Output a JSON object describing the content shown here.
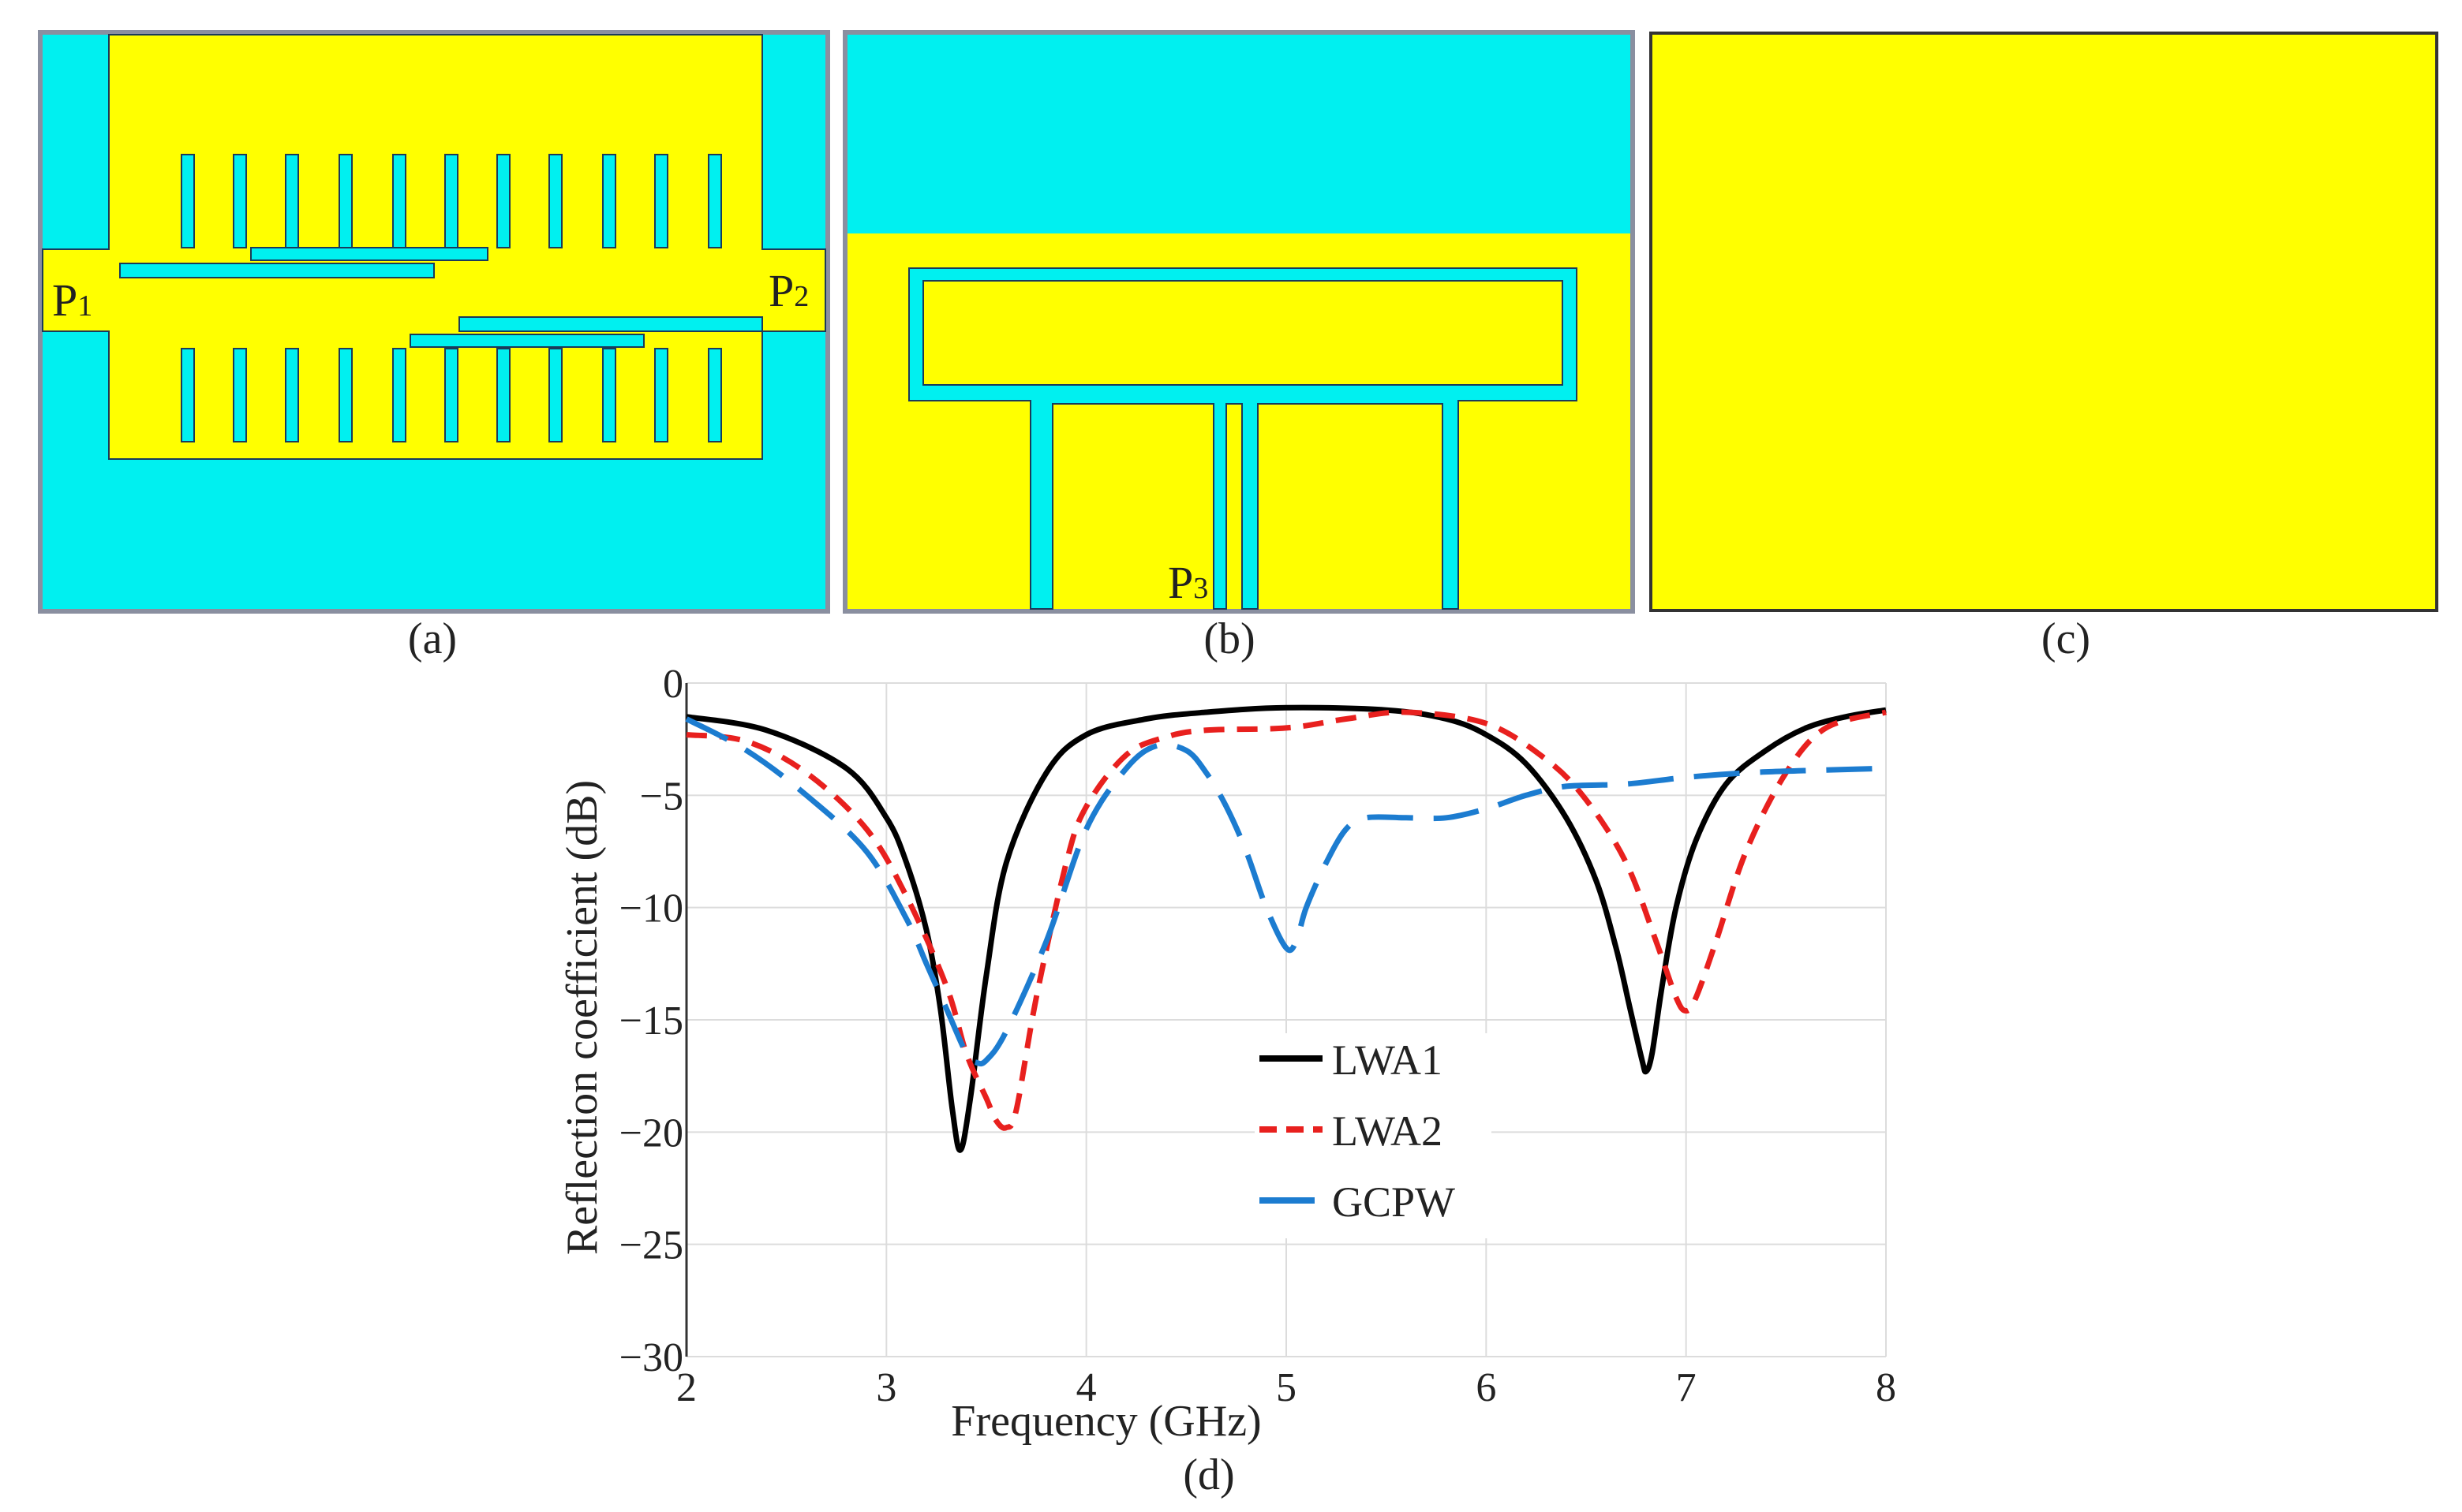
{
  "colors": {
    "substrate": "#00F0F0",
    "copper": "#FFFF00",
    "outline": "#1a3a5a",
    "frame": "#8a8fa0",
    "lwa1": "#000000",
    "lwa2": "#E8201E",
    "gcpw": "#1C7CD0",
    "grid": "#dcdcdc"
  },
  "panels": {
    "a": {
      "caption": "(a)",
      "port_left": "P",
      "port_left_sub": "1",
      "port_right": "P",
      "port_right_sub": "2"
    },
    "b": {
      "caption": "(b)",
      "port": "P",
      "port_sub": "3"
    },
    "c": {
      "caption": "(c)"
    },
    "d": {
      "caption": "(d)"
    }
  },
  "chart_data": {
    "type": "line",
    "xlabel": "Frequency (GHz)",
    "ylabel": "Reflection coefficient (dB)",
    "xlim": [
      2,
      8
    ],
    "ylim": [
      -30,
      0
    ],
    "xticks": [
      2,
      3,
      4,
      5,
      6,
      7,
      8
    ],
    "yticks": [
      0,
      -5,
      -10,
      -15,
      -20,
      -25,
      -30
    ],
    "xtick_labels": [
      "2",
      "3",
      "4",
      "5",
      "6",
      "7",
      "8"
    ],
    "ytick_labels": [
      "0",
      "−5",
      "−10",
      "−15",
      "−20",
      "−25",
      "−30"
    ],
    "grid": true,
    "legend_position": "center",
    "series": [
      {
        "name": "LWA1",
        "style": "solid",
        "x": [
          2.0,
          2.4,
          2.8,
          3.0,
          3.1,
          3.2,
          3.27,
          3.33,
          3.37,
          3.42,
          3.5,
          3.6,
          3.8,
          4.0,
          4.3,
          4.6,
          5.0,
          5.5,
          5.8,
          6.0,
          6.2,
          6.4,
          6.55,
          6.65,
          6.72,
          6.78,
          6.8,
          6.83,
          6.88,
          6.95,
          7.05,
          7.2,
          7.4,
          7.6,
          7.8,
          8.0
        ],
        "y": [
          -1.5,
          -2.1,
          -3.8,
          -6.0,
          -8.0,
          -11.0,
          -14.5,
          -19.0,
          -20.8,
          -18.5,
          -13.0,
          -8.0,
          -4.0,
          -2.3,
          -1.6,
          -1.3,
          -1.1,
          -1.2,
          -1.6,
          -2.3,
          -3.6,
          -6.0,
          -8.8,
          -11.8,
          -14.5,
          -16.8,
          -17.3,
          -16.5,
          -13.5,
          -10.0,
          -7.0,
          -4.5,
          -3.0,
          -2.0,
          -1.5,
          -1.2
        ]
      },
      {
        "name": "LWA2",
        "style": "dashed",
        "x": [
          2.0,
          2.3,
          2.6,
          2.9,
          3.1,
          3.3,
          3.4,
          3.5,
          3.55,
          3.6,
          3.65,
          3.75,
          3.9,
          4.0,
          4.2,
          4.4,
          4.6,
          5.0,
          5.3,
          5.6,
          6.0,
          6.3,
          6.5,
          6.7,
          6.85,
          6.95,
          7.0,
          7.05,
          7.15,
          7.3,
          7.5,
          7.7,
          8.0
        ],
        "y": [
          -2.3,
          -2.6,
          -4.0,
          -6.5,
          -9.5,
          -13.5,
          -16.5,
          -18.5,
          -19.5,
          -19.8,
          -19.0,
          -14.0,
          -8.0,
          -5.5,
          -3.2,
          -2.4,
          -2.1,
          -2.0,
          -1.6,
          -1.3,
          -1.8,
          -3.4,
          -5.2,
          -8.0,
          -11.5,
          -14.0,
          -14.6,
          -14.0,
          -11.5,
          -7.5,
          -4.0,
          -2.0,
          -1.3
        ]
      },
      {
        "name": "GCPW",
        "style": "longdash",
        "x": [
          2.0,
          2.3,
          2.6,
          2.9,
          3.1,
          3.2,
          3.3,
          3.4,
          3.45,
          3.5,
          3.6,
          3.8,
          4.0,
          4.2,
          4.35,
          4.5,
          4.6,
          4.7,
          4.8,
          4.9,
          5.0,
          5.05,
          5.1,
          5.2,
          5.3,
          5.4,
          5.6,
          5.8,
          6.0,
          6.2,
          6.4,
          6.7,
          7.0,
          7.3,
          7.6,
          8.0
        ],
        "y": [
          -1.6,
          -3.0,
          -5.0,
          -7.5,
          -10.5,
          -12.5,
          -14.5,
          -16.5,
          -16.9,
          -16.8,
          -15.5,
          -11.5,
          -6.5,
          -3.8,
          -2.8,
          -3.0,
          -4.0,
          -5.5,
          -7.5,
          -10.0,
          -11.8,
          -11.5,
          -10.0,
          -8.0,
          -6.5,
          -6.0,
          -6.0,
          -6.0,
          -5.6,
          -5.0,
          -4.6,
          -4.5,
          -4.2,
          -4.0,
          -3.9,
          -3.8
        ]
      }
    ]
  }
}
